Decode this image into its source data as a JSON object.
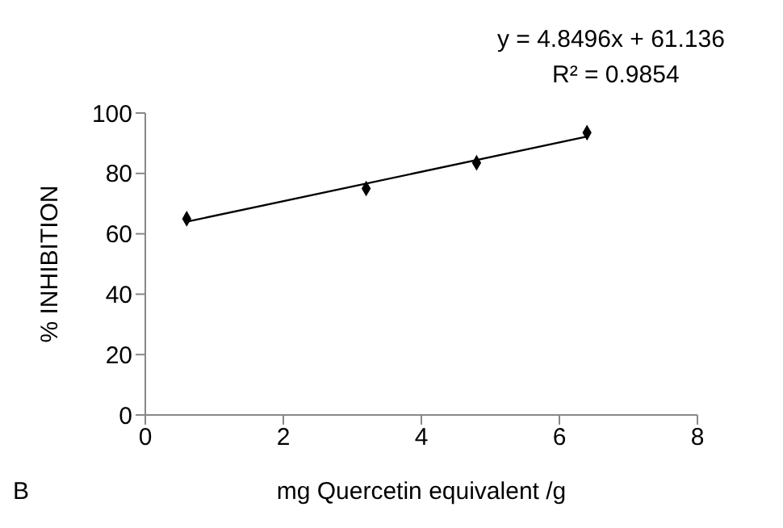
{
  "chart_data": {
    "type": "scatter",
    "xlabel": "mg Quercetin equivalent /g",
    "ylabel": "% INHIBITION",
    "x": [
      0.6,
      3.2,
      4.8,
      6.4
    ],
    "series": [
      {
        "color": "#000000",
        "values": [
          65,
          75,
          83.5,
          93.5
        ],
        "marker": "diamond"
      },
      {
        "type": "line",
        "color": "#000000",
        "x": [
          0.6,
          6.4
        ],
        "values": [
          64,
          92.2
        ],
        "marker": "none"
      }
    ],
    "xlim": [
      0,
      8
    ],
    "xticks": [
      0,
      2,
      4,
      6,
      8
    ],
    "ylim": [
      0,
      100
    ],
    "yticks": [
      0,
      20,
      40,
      60,
      80,
      100
    ],
    "annotations": [
      "y = 4.8496x + 61.136",
      "R² = 0.9854",
      "B"
    ]
  }
}
